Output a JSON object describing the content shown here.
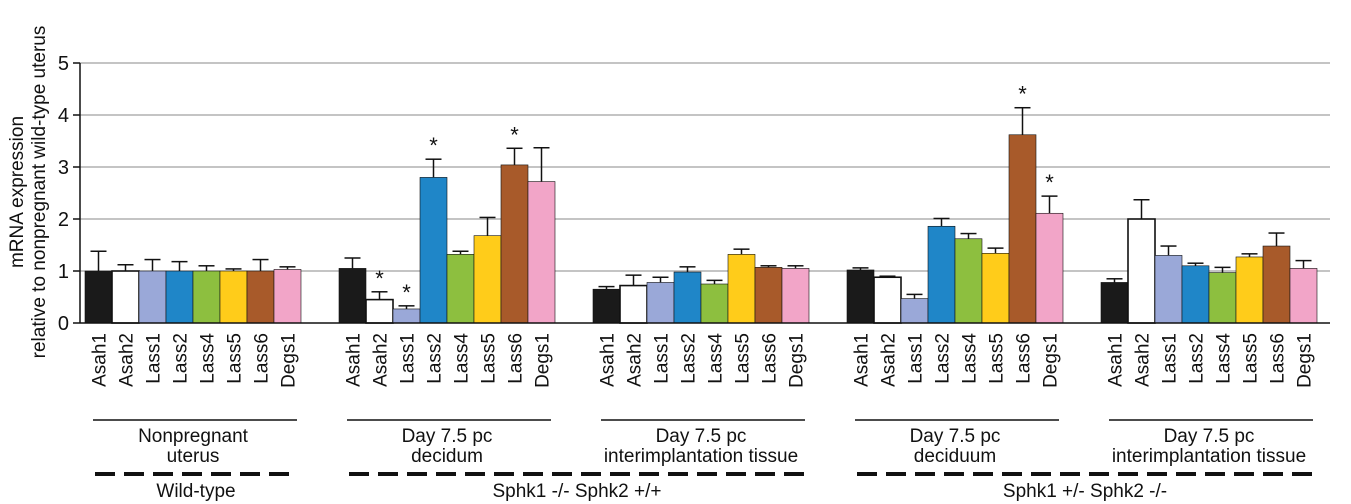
{
  "chart_data": {
    "type": "bar",
    "ylabel": [
      "mRNA expression",
      "relative to nonpregnant wild-type uterus"
    ],
    "ylim": [
      0,
      5
    ],
    "yticks": [
      0,
      1,
      2,
      3,
      4,
      5
    ],
    "grid": true,
    "genes": [
      "Asah1",
      "Asah2",
      "Lass1",
      "Lass2",
      "Lass4",
      "Lass5",
      "Lass6",
      "Degs1"
    ],
    "colors": [
      "#1a1a1a",
      "#ffffff",
      "#9aa8d8",
      "#1f86c8",
      "#8dbf3f",
      "#ffcc1a",
      "#a85a2a",
      "#f2a5c8"
    ],
    "groups": [
      {
        "label": [
          "Nonpregnant",
          "uterus"
        ],
        "values": [
          1.0,
          1.0,
          1.0,
          1.0,
          1.0,
          1.0,
          1.0,
          1.03
        ],
        "errors": [
          0.38,
          0.12,
          0.22,
          0.18,
          0.1,
          0.04,
          0.22,
          0.05
        ],
        "significant": [
          false,
          false,
          false,
          false,
          false,
          false,
          false,
          false
        ]
      },
      {
        "label": [
          "Day 7.5 pc",
          "decidum"
        ],
        "values": [
          1.05,
          0.45,
          0.27,
          2.8,
          1.32,
          1.68,
          3.04,
          2.72
        ],
        "errors": [
          0.2,
          0.15,
          0.06,
          0.35,
          0.06,
          0.35,
          0.32,
          0.65
        ],
        "significant": [
          false,
          true,
          true,
          true,
          false,
          false,
          true,
          false
        ]
      },
      {
        "label": [
          "Day 7.5 pc",
          "interimplantation tissue"
        ],
        "values": [
          0.65,
          0.72,
          0.78,
          0.98,
          0.75,
          1.32,
          1.07,
          1.05
        ],
        "errors": [
          0.05,
          0.2,
          0.1,
          0.1,
          0.07,
          0.1,
          0.03,
          0.05
        ],
        "significant": [
          false,
          false,
          false,
          false,
          false,
          false,
          false,
          false
        ]
      },
      {
        "label": [
          "Day 7.5 pc",
          "deciduum"
        ],
        "values": [
          1.02,
          0.88,
          0.47,
          1.86,
          1.62,
          1.34,
          3.62,
          2.11
        ],
        "errors": [
          0.04,
          0.02,
          0.08,
          0.15,
          0.1,
          0.1,
          0.52,
          0.33
        ],
        "significant": [
          false,
          false,
          false,
          false,
          false,
          false,
          true,
          true
        ]
      },
      {
        "label": [
          "Day 7.5 pc",
          "interimplantation tissue"
        ],
        "values": [
          0.78,
          2.0,
          1.3,
          1.1,
          0.97,
          1.27,
          1.48,
          1.05
        ],
        "errors": [
          0.07,
          0.37,
          0.18,
          0.05,
          0.1,
          0.06,
          0.25,
          0.15
        ],
        "significant": [
          false,
          false,
          false,
          false,
          false,
          false,
          false,
          false
        ]
      }
    ],
    "genotypes": [
      {
        "label": "Wild-type",
        "groups": [
          0
        ]
      },
      {
        "label": "Sphk1 -/- Sphk2 +/+",
        "groups": [
          1,
          2
        ]
      },
      {
        "label": "Sphk1 +/- Sphk2 -/-",
        "groups": [
          3,
          4
        ]
      }
    ]
  }
}
